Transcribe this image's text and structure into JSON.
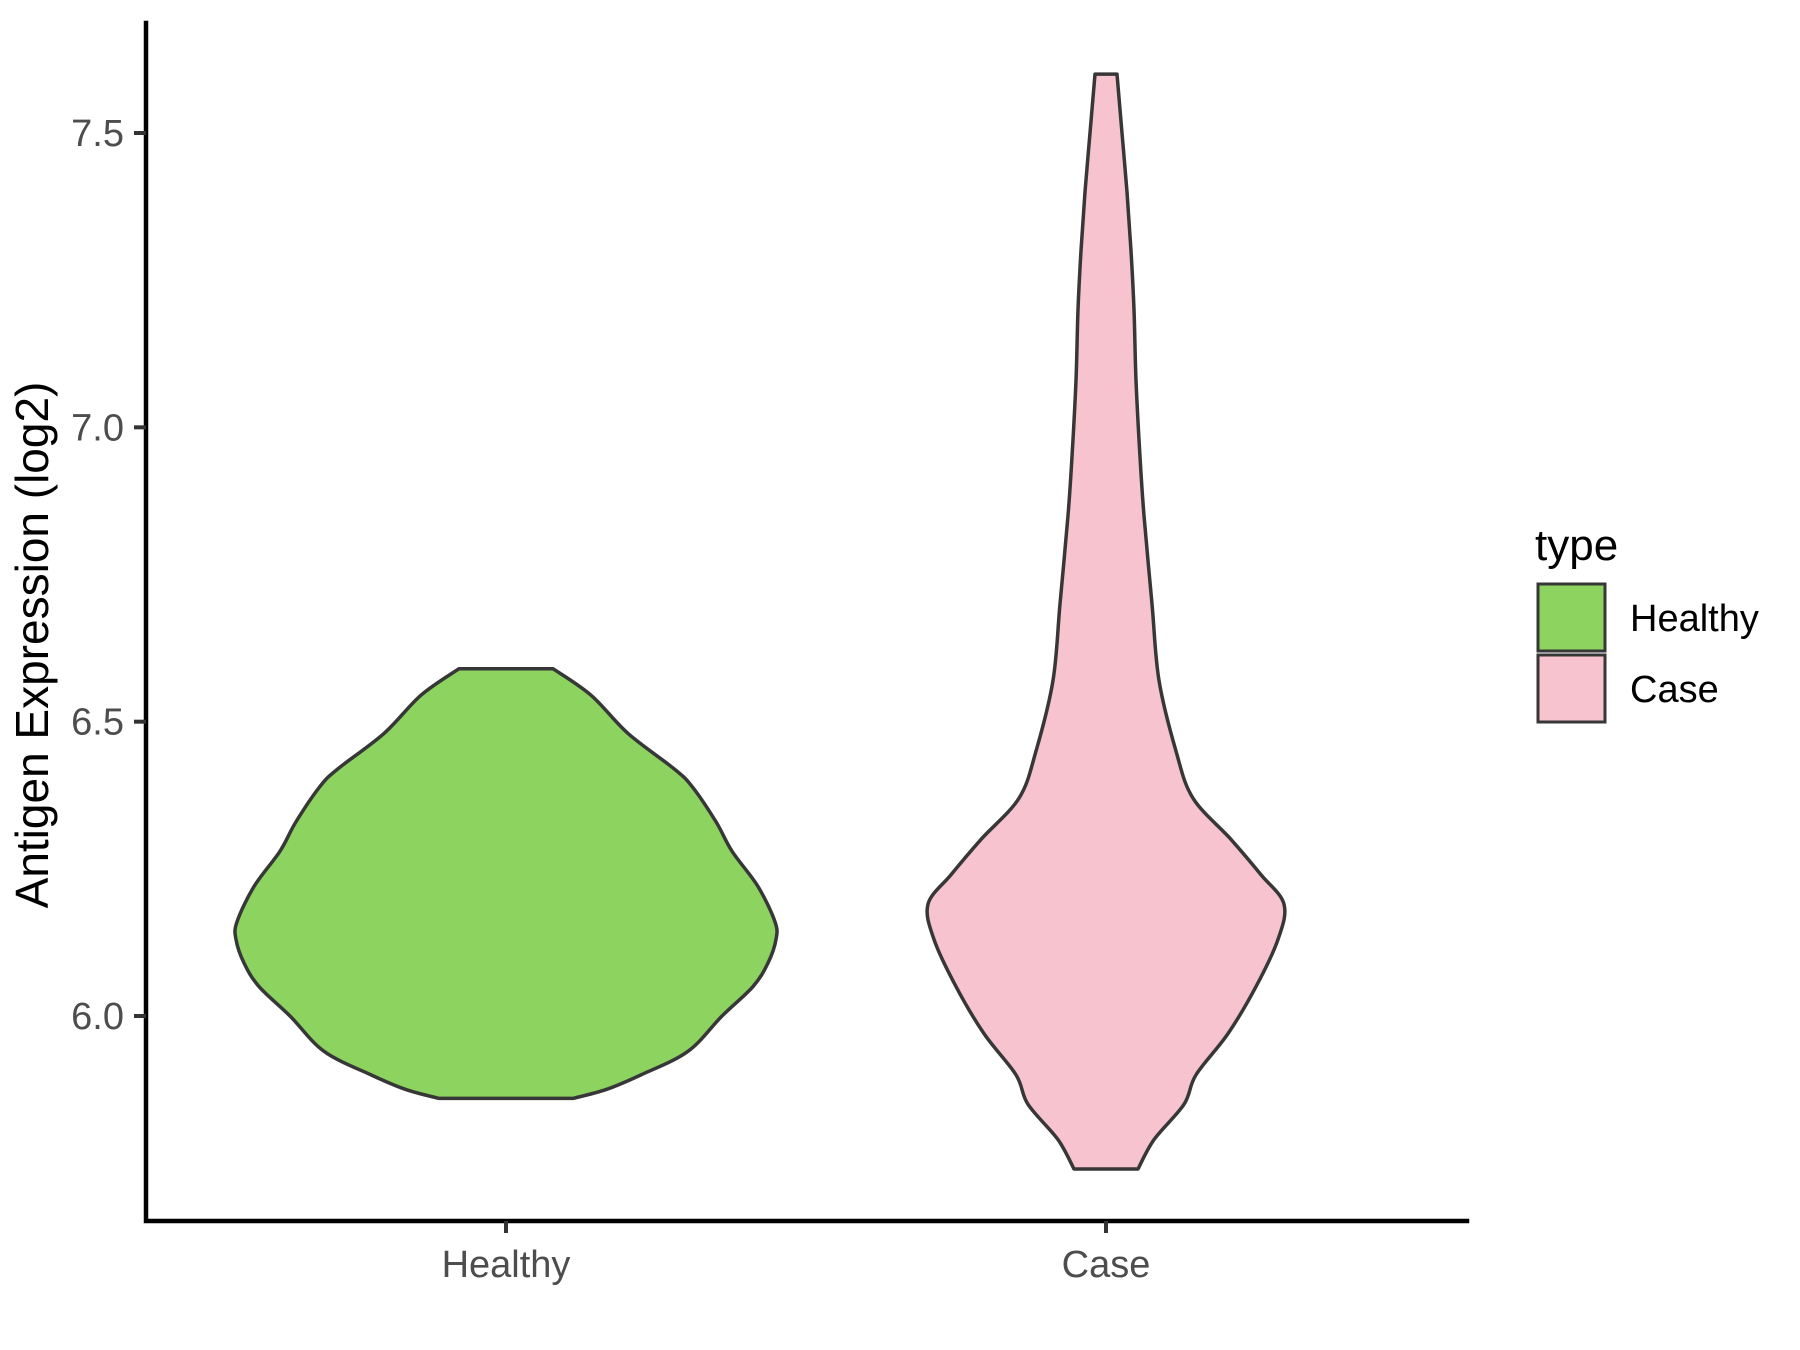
{
  "chart_data": {
    "type": "violin",
    "title": "",
    "xlabel": "",
    "ylabel": "Antigen Expression (log2)",
    "categories": [
      "Healthy",
      "Case"
    ],
    "y_ticks": [
      {
        "label": "7.5",
        "value": 7.5
      },
      {
        "label": "7.0",
        "value": 7.0
      },
      {
        "label": "6.5",
        "value": 6.5
      },
      {
        "label": "6.0",
        "value": 6.0
      }
    ],
    "y_axis_range_shown": [
      5.7,
      7.65
    ],
    "grid": "off",
    "legend": {
      "title": "type",
      "position": "right"
    },
    "outline_color": "#373737",
    "axis_line_color": "#000000",
    "tick_label_color": "#4d4d4d",
    "series": [
      {
        "name": "Healthy",
        "fill": "#8CD360",
        "value_range": [
          5.86,
          6.59
        ],
        "profile": [
          [
            6.59,
            47
          ],
          [
            6.545,
            85
          ],
          [
            6.48,
            122
          ],
          [
            6.42,
            168
          ],
          [
            6.39,
            186
          ],
          [
            6.33,
            210
          ],
          [
            6.28,
            226
          ],
          [
            6.22,
            252
          ],
          [
            6.16,
            269
          ],
          [
            6.13,
            270
          ],
          [
            6.09,
            262
          ],
          [
            6.05,
            247
          ],
          [
            6.0,
            216
          ],
          [
            5.94,
            182
          ],
          [
            5.9,
            135
          ],
          [
            5.875,
            100
          ],
          [
            5.86,
            67
          ]
        ]
      },
      {
        "name": "Case",
        "fill": "#F6C3CE",
        "value_range": [
          5.74,
          7.6
        ],
        "profile": [
          [
            7.6,
            11
          ],
          [
            7.5,
            16
          ],
          [
            7.4,
            21
          ],
          [
            7.3,
            25
          ],
          [
            7.2,
            28
          ],
          [
            7.08,
            30
          ],
          [
            6.95,
            34
          ],
          [
            6.85,
            38
          ],
          [
            6.7,
            46
          ],
          [
            6.57,
            53
          ],
          [
            6.45,
            70
          ],
          [
            6.37,
            87
          ],
          [
            6.3,
            125
          ],
          [
            6.24,
            155
          ],
          [
            6.19,
            178
          ],
          [
            6.13,
            172
          ],
          [
            6.05,
            150
          ],
          [
            5.97,
            122
          ],
          [
            5.9,
            90
          ],
          [
            5.85,
            78
          ],
          [
            5.79,
            48
          ],
          [
            5.74,
            32
          ]
        ]
      }
    ]
  }
}
